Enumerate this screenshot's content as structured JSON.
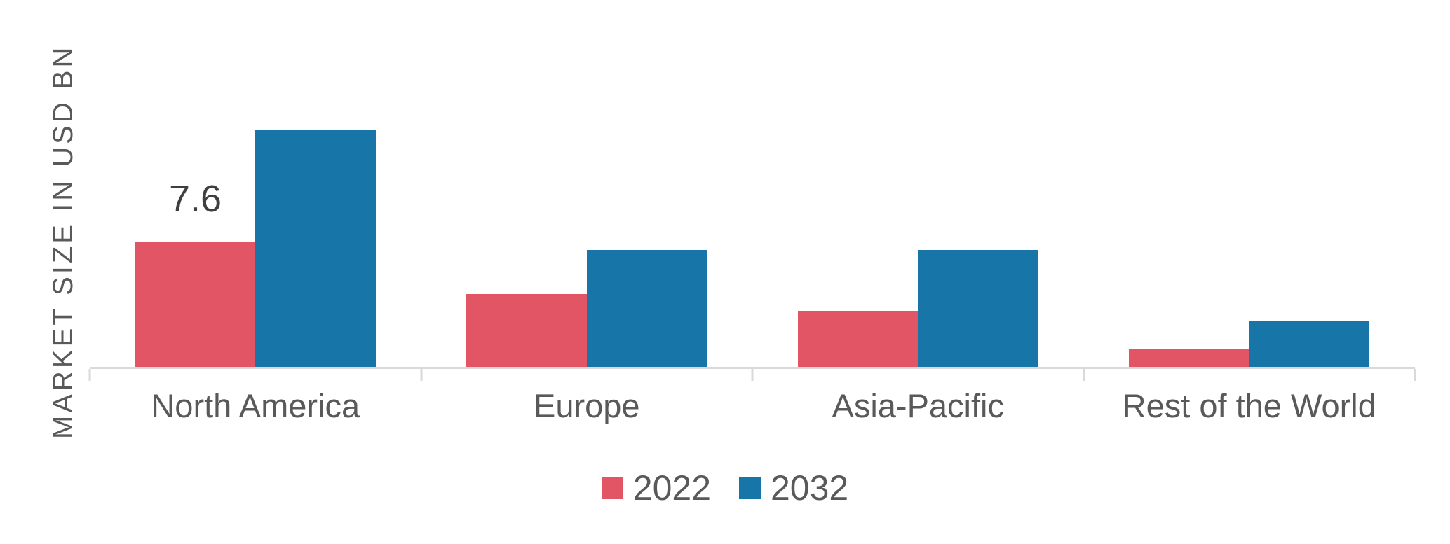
{
  "chart_data": {
    "type": "bar",
    "title": "",
    "categories": [
      "North America",
      "Europe",
      "Asia-Pacific",
      "Rest of the World"
    ],
    "series": [
      {
        "name": "2022",
        "color": "#e15565",
        "values": [
          7.6,
          4.4,
          3.4,
          1.1
        ],
        "data_labels": [
          "7.6",
          "",
          "",
          ""
        ]
      },
      {
        "name": "2032",
        "color": "#1775a8",
        "values": [
          14.4,
          7.1,
          7.1,
          2.8
        ],
        "data_labels": [
          "",
          "",
          "",
          ""
        ]
      }
    ],
    "xlabel": "",
    "ylabel": "MARKET SIZE IN USD BN",
    "ylim": [
      0,
      19.7
    ],
    "grid": false,
    "y_axis_ticks_visible": false,
    "legend_position": "bottom",
    "colors": {
      "axis_line": "#d9d9d9",
      "category_text": "#595959",
      "axis_title_text": "#595959",
      "data_label_text": "#3f3f3f",
      "background": "#ffffff"
    }
  }
}
